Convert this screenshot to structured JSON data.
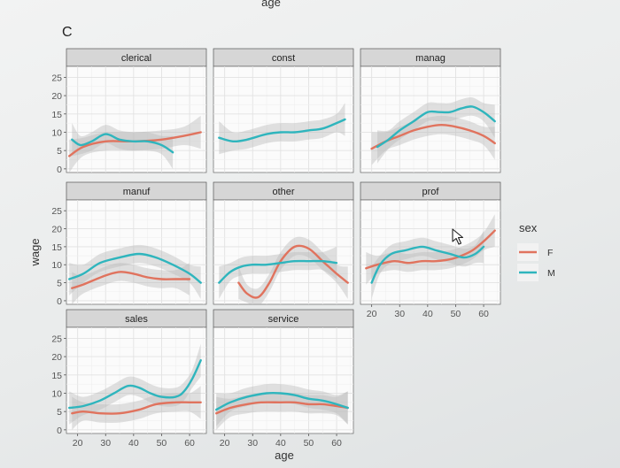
{
  "chart_data": {
    "type": "line",
    "panel_label": "C",
    "top_label": "age",
    "xlabel": "age",
    "ylabel": "wage",
    "xlim": [
      16,
      66
    ],
    "ylim": [
      -1,
      28
    ],
    "x_ticks": [
      20,
      30,
      40,
      50,
      60
    ],
    "y_ticks": [
      0,
      5,
      10,
      15,
      20,
      25
    ],
    "legend": {
      "title": "sex",
      "entries": [
        "F",
        "M"
      ],
      "position": "right"
    },
    "colors": {
      "F": "#e0735e",
      "M": "#2fb5bd",
      "band": "#bdbdbd"
    },
    "grid": true,
    "panels": [
      {
        "name": "clerical",
        "series": [
          {
            "name": "F",
            "x": [
              17,
              22,
              30,
              40,
              50,
              58,
              64
            ],
            "y": [
              3.5,
              6,
              7.5,
              7.5,
              8,
              9,
              10
            ]
          },
          {
            "name": "M",
            "x": [
              18,
              21,
              25,
              30,
              35,
              40,
              45,
              50,
              54
            ],
            "y": [
              8,
              6.5,
              7.5,
              9.5,
              8,
              7.5,
              7.5,
              6.5,
              4.5
            ]
          }
        ]
      },
      {
        "name": "const",
        "series": [
          {
            "name": "M",
            "x": [
              18,
              23,
              28,
              35,
              40,
              45,
              50,
              55,
              60,
              63
            ],
            "y": [
              8.5,
              7.5,
              8,
              9.5,
              10,
              10,
              10.5,
              11,
              12.5,
              13.5
            ]
          }
        ]
      },
      {
        "name": "manag",
        "series": [
          {
            "name": "F",
            "x": [
              20,
              25,
              30,
              35,
              40,
              45,
              50,
              55,
              60,
              64
            ],
            "y": [
              5.5,
              7.5,
              9,
              10.5,
              11.5,
              12,
              11.5,
              10.5,
              9,
              7
            ]
          },
          {
            "name": "M",
            "x": [
              22,
              26,
              30,
              35,
              40,
              44,
              48,
              52,
              56,
              60,
              64
            ],
            "y": [
              6,
              8,
              10.5,
              13,
              15.5,
              15.5,
              15.5,
              16.5,
              17,
              15.5,
              13
            ]
          }
        ]
      },
      {
        "name": "manuf",
        "series": [
          {
            "name": "F",
            "x": [
              18,
              22,
              30,
              35,
              40,
              45,
              50,
              55,
              60
            ],
            "y": [
              3.5,
              4.5,
              7,
              8,
              7.5,
              6.5,
              6,
              6,
              6
            ]
          },
          {
            "name": "M",
            "x": [
              17,
              22,
              28,
              35,
              42,
              48,
              54,
              60,
              64
            ],
            "y": [
              6,
              7.5,
              10.5,
              12,
              13,
              12,
              10,
              7.5,
              5
            ]
          }
        ]
      },
      {
        "name": "other",
        "series": [
          {
            "name": "F",
            "x": [
              25,
              28,
              32,
              36,
              40,
              45,
              50,
              55,
              60,
              64
            ],
            "y": [
              5,
              2,
              1,
              5,
              11,
              15,
              14.5,
              11,
              7.5,
              5
            ]
          },
          {
            "name": "M",
            "x": [
              18,
              22,
              26,
              30,
              35,
              40,
              45,
              50,
              55,
              60
            ],
            "y": [
              5,
              8,
              9.5,
              10,
              10,
              10.5,
              11,
              11,
              11,
              10.5
            ]
          }
        ]
      },
      {
        "name": "prof",
        "series": [
          {
            "name": "F",
            "x": [
              18,
              22,
              28,
              33,
              38,
              43,
              48,
              52,
              56,
              60,
              64
            ],
            "y": [
              9,
              10,
              11,
              10.5,
              11,
              11,
              11.5,
              12.5,
              14,
              16.5,
              19.5
            ]
          },
          {
            "name": "M",
            "x": [
              20,
              23,
              27,
              32,
              38,
              43,
              48,
              53,
              57,
              60
            ],
            "y": [
              5,
              10,
              13,
              14,
              15,
              14,
              13,
              12,
              13,
              15
            ]
          }
        ]
      },
      {
        "name": "sales",
        "series": [
          {
            "name": "F",
            "x": [
              18,
              22,
              28,
              35,
              42,
              48,
              55,
              60,
              64
            ],
            "y": [
              4.5,
              5,
              4.5,
              4.5,
              5.5,
              7,
              7.5,
              7.5,
              7.5
            ]
          },
          {
            "name": "M",
            "x": [
              17,
              22,
              28,
              33,
              38,
              42,
              46,
              50,
              55,
              58,
              61,
              64
            ],
            "y": [
              6,
              6.5,
              8,
              10,
              12,
              11.5,
              10,
              9,
              9,
              10.5,
              14,
              19
            ]
          }
        ]
      },
      {
        "name": "service",
        "series": [
          {
            "name": "F",
            "x": [
              17,
              22,
              28,
              33,
              40,
              45,
              50,
              55,
              60,
              64
            ],
            "y": [
              4.5,
              6,
              7,
              7.5,
              7.5,
              7.5,
              7,
              7,
              6.5,
              6
            ]
          },
          {
            "name": "M",
            "x": [
              17,
              22,
              28,
              35,
              40,
              45,
              50,
              55,
              60,
              64
            ],
            "y": [
              5.5,
              7.5,
              9,
              10,
              10,
              9.5,
              8.5,
              8,
              7,
              6
            ]
          }
        ]
      }
    ]
  }
}
